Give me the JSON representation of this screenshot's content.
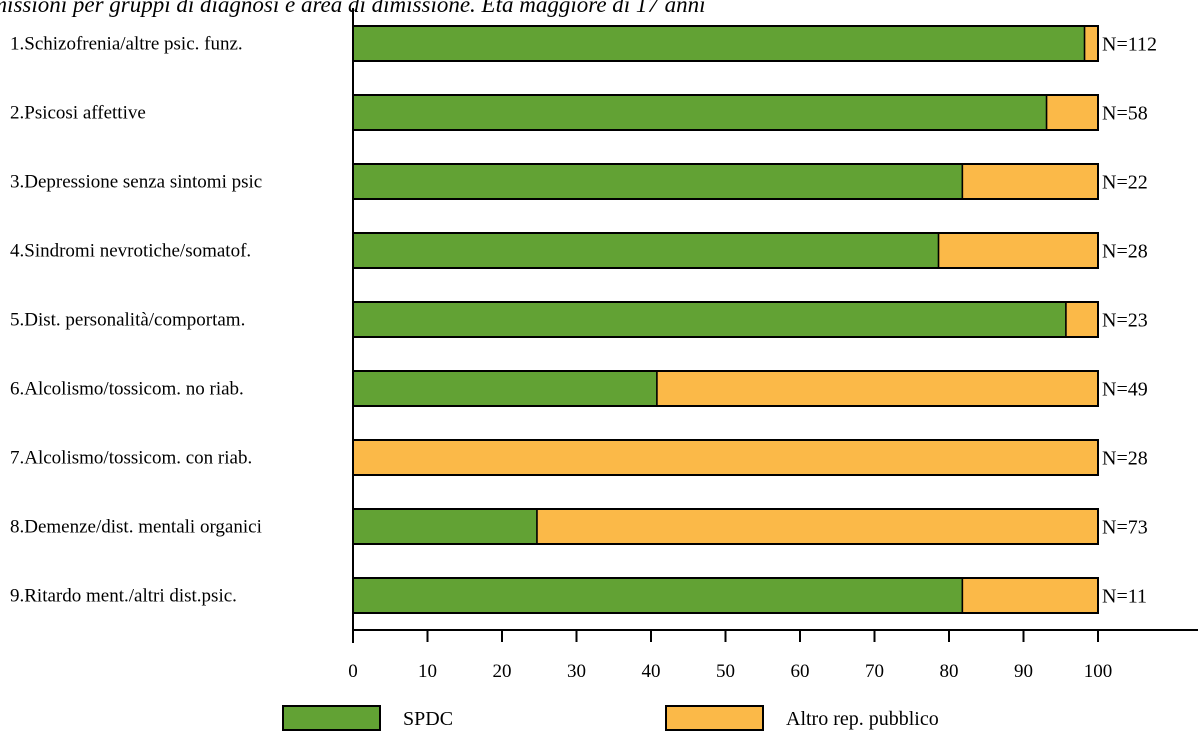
{
  "chart_data": {
    "type": "bar",
    "orientation": "horizontal",
    "stacked": true,
    "title": "…missioni per gruppi di diagnosi e area di dimissione. Età maggiore di 17 anni",
    "categories": [
      "1.Schizofrenia/altre psic. funz.",
      "2.Psicosi affettive",
      "3.Depressione senza sintomi psic",
      "4.Sindromi nevrotiche/somatof.",
      "5.Dist. personalità/comportam.",
      "6.Alcolismo/tossicom. no riab.",
      "7.Alcolismo/tossicom. con riab.",
      "8.Demenze/dist. mentali organici",
      "9.Ritardo ment./altri dist.psic."
    ],
    "n_labels": [
      "N=112",
      "N=58",
      "N=22",
      "N=28",
      "N=23",
      "N=49",
      "N=28",
      "N=73",
      "N=11"
    ],
    "series": [
      {
        "name": "SPDC",
        "color": "#62a234",
        "values": [
          98.2,
          93.1,
          81.8,
          78.6,
          95.7,
          40.8,
          0,
          24.7,
          81.8
        ]
      },
      {
        "name": "Altro rep. pubblico",
        "color": "#fbb948",
        "values": [
          1.8,
          6.9,
          18.2,
          21.4,
          4.3,
          59.2,
          100,
          75.3,
          18.2
        ]
      }
    ],
    "xlim": [
      0,
      100
    ],
    "xticks": [
      0,
      10,
      20,
      30,
      40,
      50,
      60,
      70,
      80,
      90,
      100
    ],
    "legend_position": "bottom"
  }
}
